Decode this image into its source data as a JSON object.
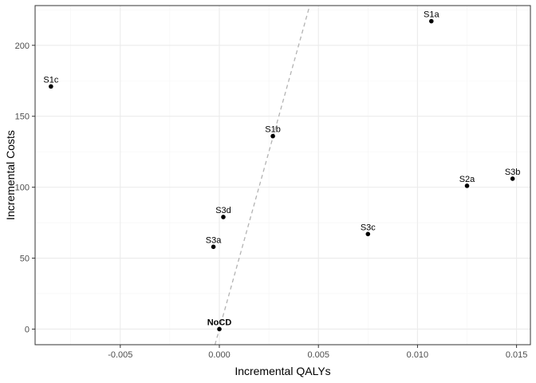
{
  "chart_data": {
    "type": "scatter",
    "xlabel": "Incremental QALYs",
    "ylabel": "Incremental Costs",
    "xlim": [
      -0.0093,
      0.0157
    ],
    "ylim": [
      -11,
      228
    ],
    "x_ticks": [
      -0.005,
      0.0,
      0.005,
      0.01,
      0.015
    ],
    "x_tick_labels": [
      "-0.005",
      "0.000",
      "0.005",
      "0.010",
      "0.015"
    ],
    "y_ticks": [
      0,
      50,
      100,
      150,
      200
    ],
    "y_tick_labels": [
      "0",
      "50",
      "100",
      "150",
      "200"
    ],
    "grid": true,
    "points": [
      {
        "label": "S1a",
        "x": 0.0107,
        "y": 217
      },
      {
        "label": "S1b",
        "x": 0.0027,
        "y": 136
      },
      {
        "label": "S1c",
        "x": -0.0085,
        "y": 171
      },
      {
        "label": "S2a",
        "x": 0.0125,
        "y": 101
      },
      {
        "label": "S3a",
        "x": -0.0003,
        "y": 58
      },
      {
        "label": "S3b",
        "x": 0.0148,
        "y": 106
      },
      {
        "label": "S3c",
        "x": 0.0075,
        "y": 67
      },
      {
        "label": "S3d",
        "x": 0.0002,
        "y": 79
      },
      {
        "label": "NoCD",
        "x": 0.0,
        "y": 0,
        "bold": true
      }
    ],
    "reference_line": {
      "style": "dashed",
      "color": "#b3b3b3",
      "slope": 50000,
      "intercept": 0
    },
    "colors": {
      "point": "#000000",
      "panel_border": "#333333",
      "grid_major": "#ebebeb",
      "grid_minor": "#f5f5f5"
    }
  }
}
